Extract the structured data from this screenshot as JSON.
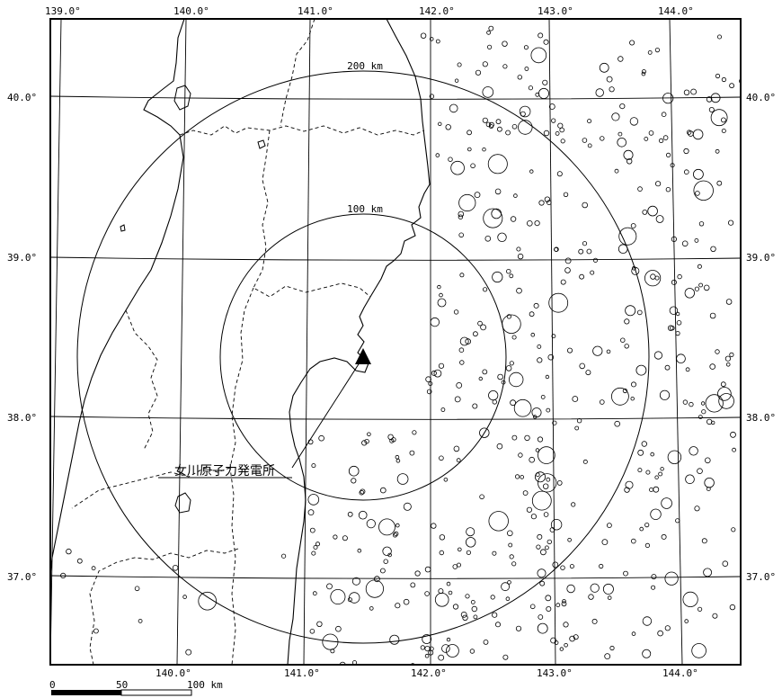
{
  "map": {
    "longitude_labels_top": [
      "139.0°",
      "140.0°",
      "141.0°",
      "142.0°",
      "143.0°",
      "144.0°"
    ],
    "longitude_labels_bottom": [
      "140.0°",
      "141.0°",
      "142.0°",
      "143.0°",
      "144.0°"
    ],
    "latitude_labels_left": [
      "40.0°",
      "39.0°",
      "38.0°",
      "37.0°"
    ],
    "latitude_labels_right": [
      "40.0°",
      "39.0°",
      "38.0°",
      "37.0°"
    ],
    "range_rings": [
      {
        "label": "200 km",
        "radius_km": 200
      },
      {
        "label": "100 km",
        "radius_km": 100
      }
    ],
    "site": {
      "label": "女川原子力発電所",
      "lon": 141.5,
      "lat": 38.4,
      "marker": "filled-triangle"
    }
  },
  "scale_bar": {
    "tick_labels": [
      "0",
      "50",
      "100 km"
    ]
  },
  "colors": {
    "ink": "#000000",
    "background": "#ffffff"
  }
}
